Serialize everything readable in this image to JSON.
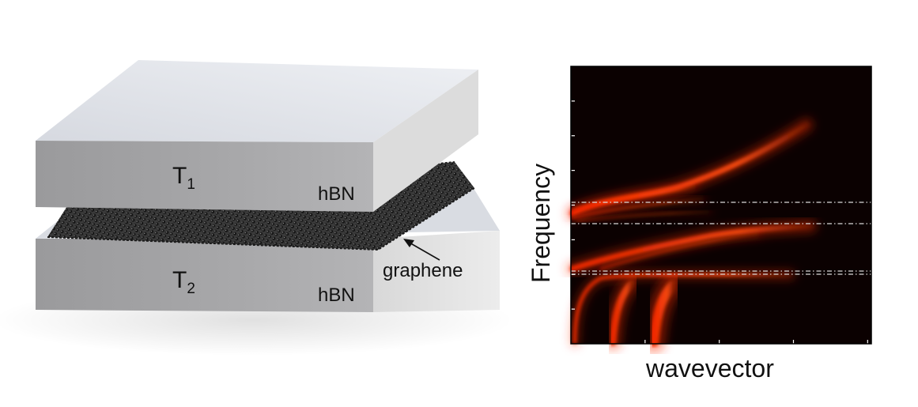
{
  "heterostructure": {
    "top_layer": {
      "temperature_symbol": "T",
      "temperature_index": "1",
      "material": "hBN"
    },
    "bottom_layer": {
      "temperature_symbol": "T",
      "temperature_index": "2",
      "material": "hBN"
    },
    "middle_layer": {
      "material": "graphene"
    }
  },
  "dispersion_plot": {
    "xlabel": "wavevector",
    "ylabel": "Frequency",
    "colormap": "black-red-yellow",
    "x_ticks": 4,
    "y_ticks": 8,
    "reference_lines": 4
  },
  "colors": {
    "slab_top": "#dfe2e8",
    "slab_front": "#a3a3a5",
    "slab_side": "#dedede",
    "graphene": "#2b2b2b",
    "plot_bg": "#0b0101",
    "mode": "#ff3a10"
  }
}
